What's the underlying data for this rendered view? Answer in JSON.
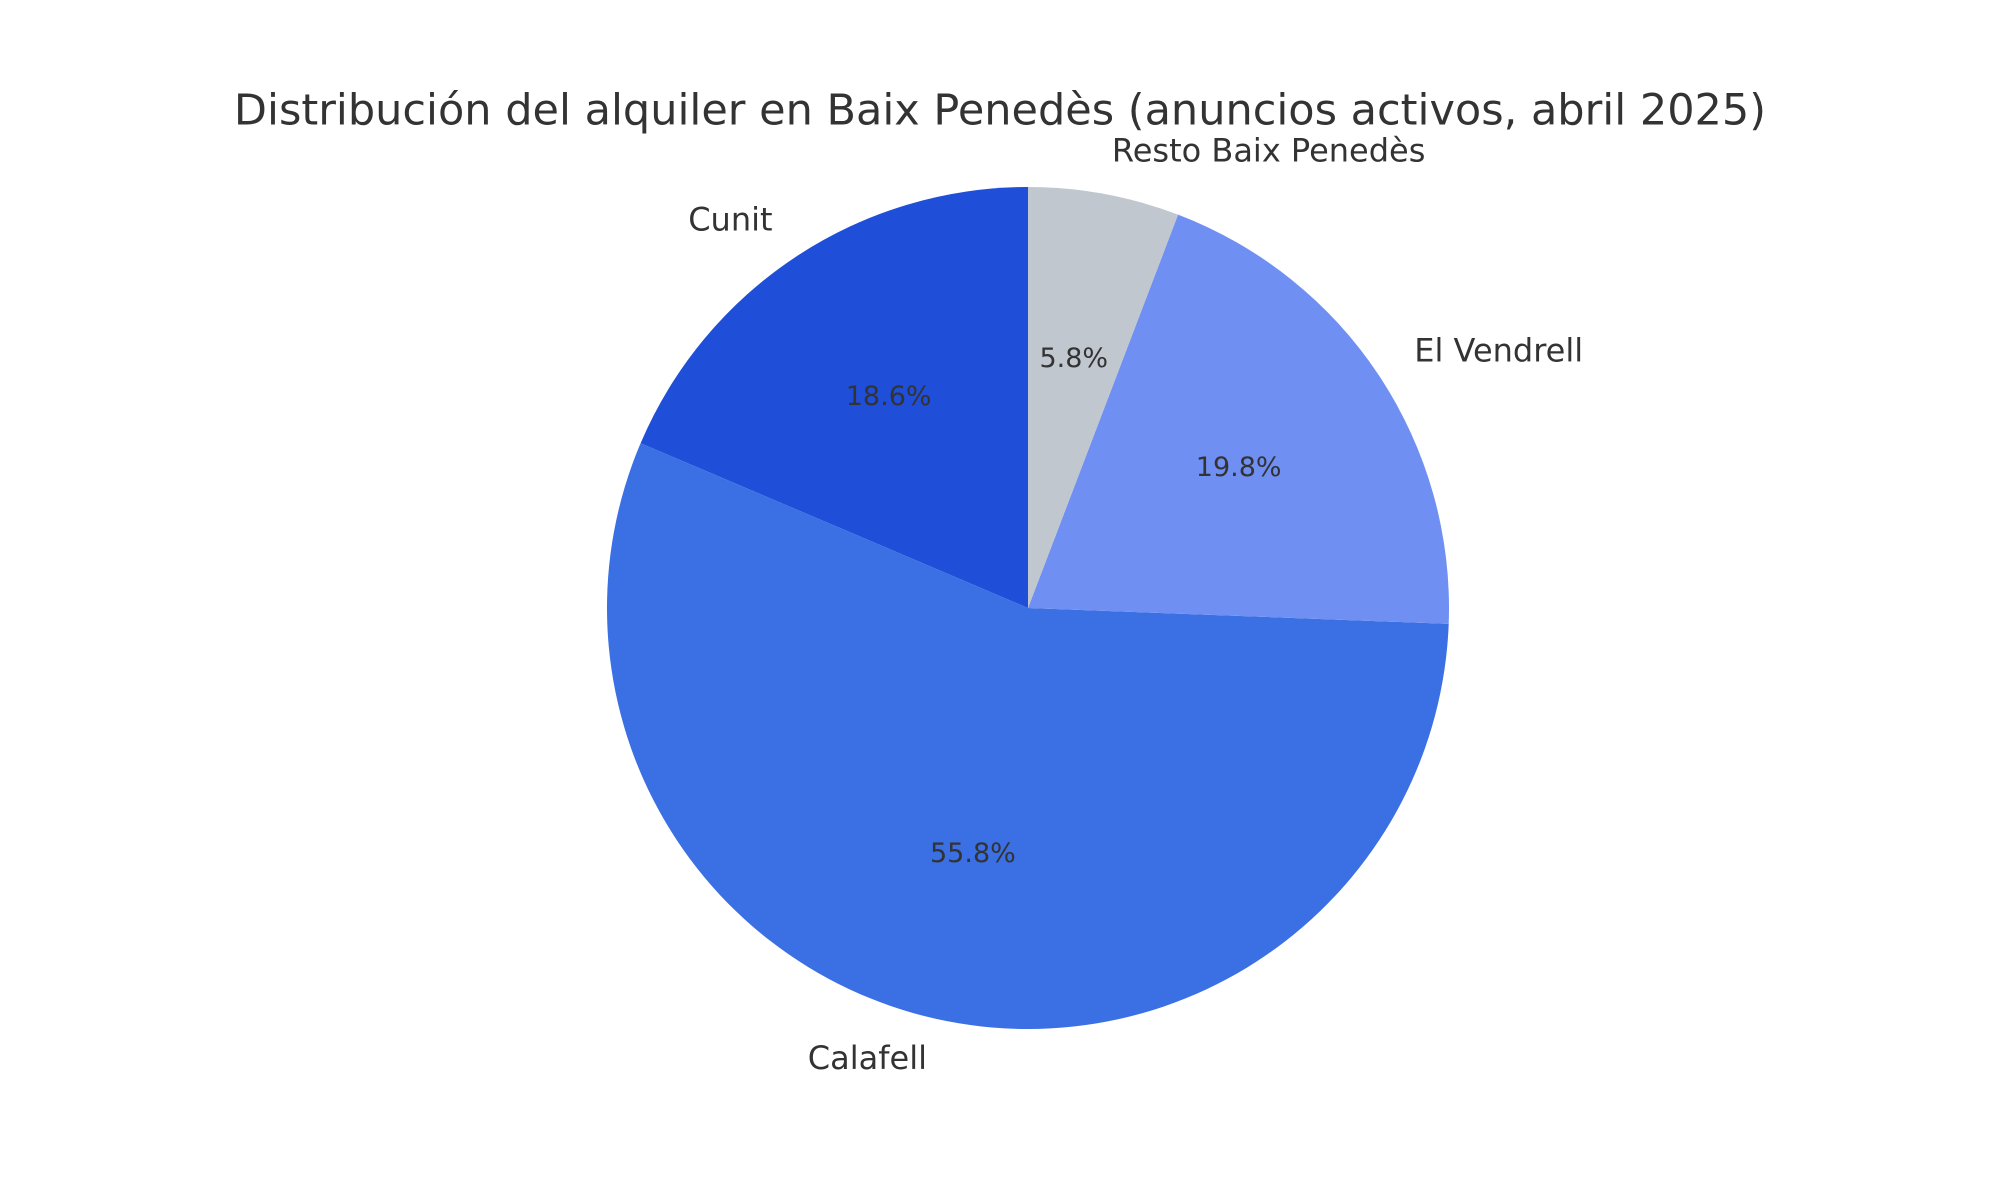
{
  "chart_data": {
    "type": "pie",
    "title": "Distribución del alquiler en Baix Penedès (anuncios activos, abril 2025)",
    "categories": [
      "Cunit",
      "Calafell",
      "El Vendrell",
      "Resto Baix Penedès"
    ],
    "values": [
      18.6,
      55.8,
      19.8,
      5.8
    ],
    "value_labels": [
      "18.6%",
      "55.8%",
      "19.8%",
      "5.8%"
    ],
    "colors": [
      "#1f4ed8",
      "#3b6fe4",
      "#6f90f2",
      "#c0c7cf"
    ]
  }
}
